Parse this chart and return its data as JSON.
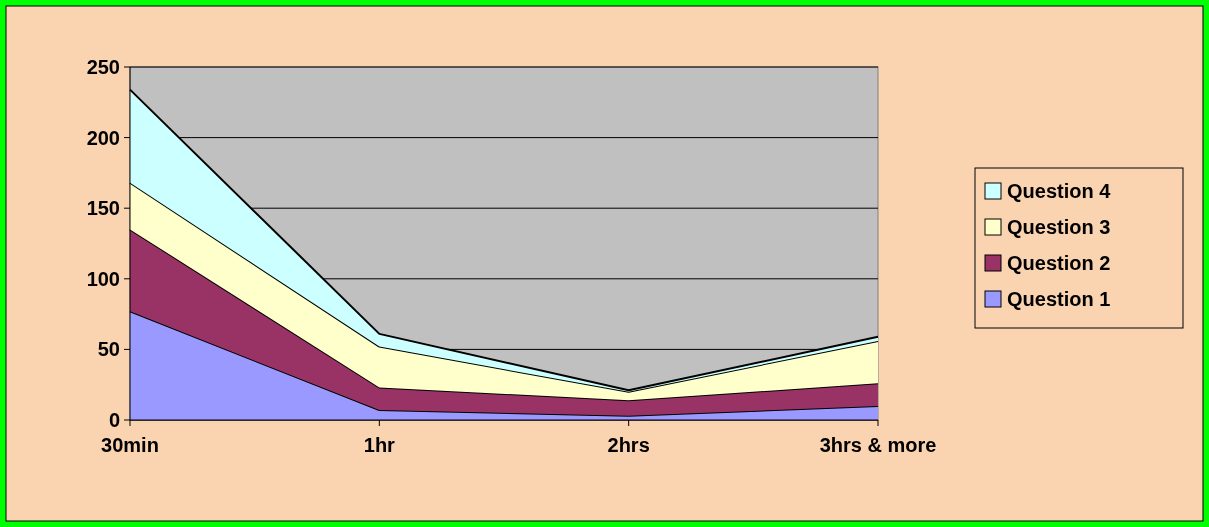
{
  "chart_data": {
    "type": "area",
    "stacked": true,
    "categories": [
      "30min",
      "1hr",
      "2hrs",
      "3hrs & more"
    ],
    "series": [
      {
        "name": "Question 1",
        "color": "#9999ff",
        "values": [
          77,
          7,
          3,
          10
        ]
      },
      {
        "name": "Question 2",
        "color": "#993366",
        "values": [
          58,
          16,
          11,
          16
        ]
      },
      {
        "name": "Question 3",
        "color": "#ffffcc",
        "values": [
          33,
          29,
          6,
          30
        ]
      },
      {
        "name": "Question 4",
        "color": "#ccffff",
        "values": [
          66,
          9,
          1,
          3
        ]
      }
    ],
    "ylim": [
      0,
      250
    ],
    "yticks": [
      0,
      50,
      100,
      150,
      200,
      250
    ],
    "grid": "y",
    "legend": "right"
  }
}
